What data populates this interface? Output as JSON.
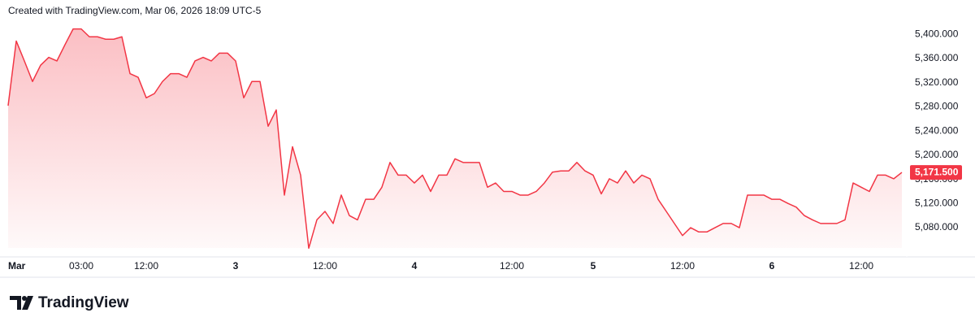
{
  "header": {
    "text": "Created with TradingView.com, Mar 06, 2026 18:09 UTC-5"
  },
  "footer": {
    "brand": "TradingView"
  },
  "chart_data": {
    "type": "area",
    "categories": [
      null,
      "Mar",
      null,
      null,
      null,
      null,
      null,
      null,
      null,
      "03:00",
      null,
      null,
      null,
      null,
      null,
      null,
      null,
      "12:00",
      null,
      null,
      null,
      null,
      null,
      null,
      null,
      null,
      null,
      null,
      "3",
      null,
      null,
      null,
      null,
      null,
      null,
      null,
      null,
      null,
      null,
      "12:00",
      null,
      null,
      null,
      null,
      null,
      null,
      null,
      null,
      null,
      null,
      "4",
      null,
      null,
      null,
      null,
      null,
      null,
      null,
      null,
      null,
      null,
      null,
      "12:00",
      null,
      null,
      null,
      null,
      null,
      null,
      null,
      null,
      null,
      "5",
      null,
      null,
      null,
      null,
      null,
      null,
      null,
      null,
      null,
      null,
      "12:00",
      null,
      null,
      null,
      null,
      null,
      null,
      null,
      null,
      null,
      null,
      "6",
      null,
      null,
      null,
      null,
      null,
      null,
      null,
      null,
      null,
      null,
      "12:00",
      null,
      null,
      null,
      null,
      null
    ],
    "series": [
      {
        "color": "#f23645",
        "values": [
          5282,
          5389,
          5356,
          5322,
          5349,
          5362,
          5356,
          5383,
          5409,
          5409,
          5396,
          5396,
          5392,
          5392,
          5396,
          5335,
          5329,
          5295,
          5302,
          5322,
          5335,
          5335,
          5329,
          5356,
          5362,
          5356,
          5369,
          5369,
          5356,
          5295,
          5322,
          5322,
          5248,
          5275,
          5134,
          5214,
          5167,
          5046,
          5093,
          5107,
          5087,
          5134,
          5100,
          5093,
          5127,
          5127,
          5147,
          5188,
          5167,
          5167,
          5154,
          5167,
          5140,
          5167,
          5167,
          5194,
          5188,
          5188,
          5188,
          5147,
          5154,
          5140,
          5140,
          5134,
          5134,
          5140,
          5154,
          5172,
          5174,
          5174,
          5188,
          5174,
          5167,
          5136,
          5161,
          5154,
          5174,
          5154,
          5167,
          5161,
          5127,
          5107,
          5087,
          5067,
          5080,
          5073,
          5073,
          5080,
          5087,
          5087,
          5080,
          5134,
          5134,
          5134,
          5127,
          5127,
          5120,
          5114,
          5100,
          5093,
          5087,
          5087,
          5087,
          5093,
          5154,
          5147,
          5140,
          5167,
          5167,
          5161,
          5171.5
        ]
      }
    ],
    "price_label": {
      "value": 5171.5,
      "label": "5,171.500"
    },
    "ylim": [
      5033,
      5430
    ],
    "yticks": [
      {
        "value": 5080,
        "label": "5,080.000"
      },
      {
        "value": 5120,
        "label": "5,120.000"
      },
      {
        "value": 5160,
        "label": "5,160.000"
      },
      {
        "value": 5200,
        "label": "5,200.000"
      },
      {
        "value": 5240,
        "label": "5,240.000"
      },
      {
        "value": 5280,
        "label": "5,280.000"
      },
      {
        "value": 5320,
        "label": "5,320.000"
      },
      {
        "value": 5360,
        "label": "5,360.000"
      },
      {
        "value": 5400,
        "label": "5,400.000"
      }
    ],
    "grid": false
  }
}
